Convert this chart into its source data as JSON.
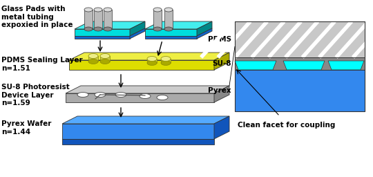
{
  "background_color": "#ffffff",
  "labels": {
    "glass_pads": "Glass Pads with\nmetal tubing\nexpoxied in place",
    "pdms_sealing": "PDMS Sealing Layer\nn=1.51",
    "su8_layer": "SU-8 Photoresist\nDevice Layer\nn=1.59",
    "pyrex_wafer": "Pyrex Wafer\nn=1.44",
    "pdms_label": "PDMS",
    "su8_label": "SU-8",
    "pyrex_label": "Pyrex",
    "clean_facet": "Clean facet for coupling"
  },
  "colors": {
    "cyan_light": "#00DDDD",
    "blue_dark": "#1166CC",
    "yellow_face": "#DDDD00",
    "yellow_top": "#EEEE44",
    "yellow_side": "#AAAA00",
    "gray_face": "#AAAAAA",
    "gray_top": "#CCCCCC",
    "gray_side": "#888888",
    "gray_tube_face": "#BBBBBB",
    "gray_tube_top": "#DDDDDD",
    "yellow_tube_face": "#CCCC44",
    "yellow_tube_top": "#EEEE88",
    "white": "#FFFFFF",
    "light_gray_cs": "#C8C8C8",
    "dark_gray_su8": "#888888",
    "cyan_channel": "#00FFFF",
    "pyrex_blue": "#3388EE",
    "pyrex_blue_top": "#55AAFF",
    "pyrex_blue_side": "#1155BB",
    "cyan_top": "#44EEEE",
    "cyan_side": "#008888"
  }
}
